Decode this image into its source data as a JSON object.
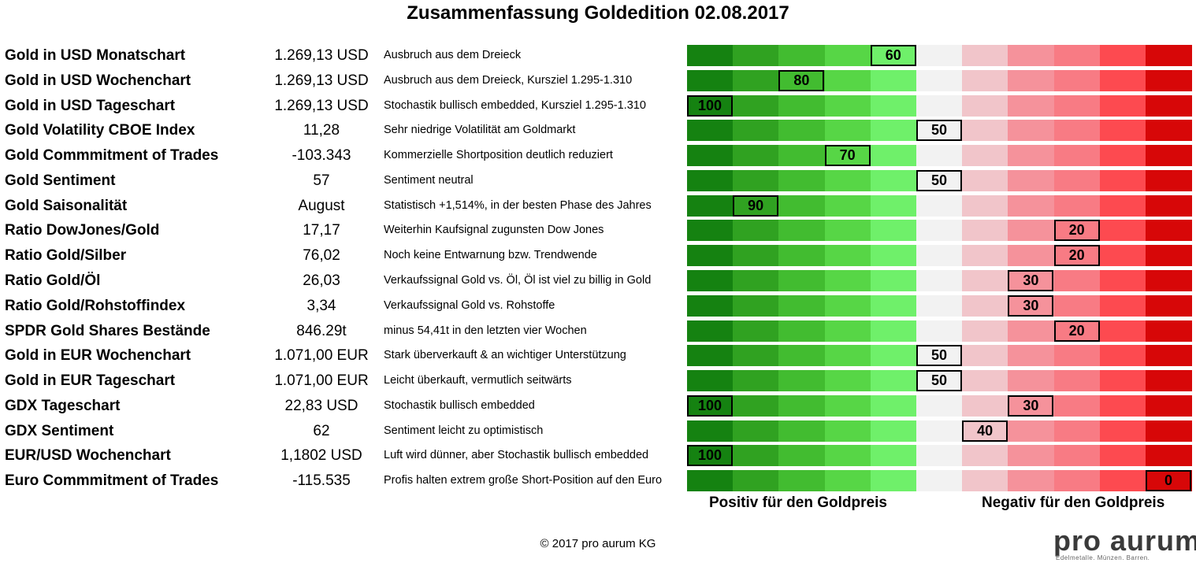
{
  "title": "Zusammenfassung Goldedition 02.08.2017",
  "chart_data": {
    "type": "table",
    "scale_colors": [
      "#158211",
      "#30a221",
      "#42bc30",
      "#57d646",
      "#6ff06a",
      "#f2f2f2",
      "#f1c5ca",
      "#f5929b",
      "#f87b84",
      "#fd4a50",
      "#d70708"
    ],
    "scale_ticks": [
      100,
      90,
      80,
      70,
      60,
      50,
      40,
      30,
      20,
      10,
      0
    ],
    "rows": [
      {
        "label": "Gold in USD Monatschart",
        "value": "1.269,13 USD",
        "comment": "Ausbruch aus dem Dreieck",
        "score": 60
      },
      {
        "label": "Gold in USD Wochenchart",
        "value": "1.269,13 USD",
        "comment": "Ausbruch aus dem Dreieck, Kursziel 1.295-1.310",
        "score": 80
      },
      {
        "label": "Gold in USD Tageschart",
        "value": "1.269,13 USD",
        "comment": "Stochastik bullisch embedded, Kursziel 1.295-1.310",
        "score": 100
      },
      {
        "label": "Gold Volatility CBOE Index",
        "value": "11,28",
        "comment": "Sehr niedrige Volatilität am Goldmarkt",
        "score": 50
      },
      {
        "label": "Gold Commmitment of Trades",
        "value": "-103.343",
        "comment": "Kommerzielle Shortposition deutlich reduziert",
        "score": 70
      },
      {
        "label": "Gold Sentiment",
        "value": "57",
        "comment": "Sentiment neutral",
        "score": 50
      },
      {
        "label": "Gold Saisonalität",
        "value": "August",
        "comment": "Statistisch +1,514%, in der besten Phase des Jahres",
        "score": 90
      },
      {
        "label": "Ratio DowJones/Gold",
        "value": "17,17",
        "comment": "Weiterhin Kaufsignal zugunsten Dow Jones",
        "score": 20
      },
      {
        "label": "Ratio Gold/Silber",
        "value": "76,02",
        "comment": "Noch keine Entwarnung bzw. Trendwende",
        "score": 20
      },
      {
        "label": "Ratio Gold/Öl",
        "value": "26,03",
        "comment": "Verkaufssignal Gold vs. Öl, Öl ist viel zu billig in Gold",
        "score": 30
      },
      {
        "label": "Ratio Gold/Rohstoffindex",
        "value": "3,34",
        "comment": "Verkaufssignal Gold vs. Rohstoffe",
        "score": 30
      },
      {
        "label": "SPDR Gold Shares Bestände",
        "value": "846.29t",
        "comment": "minus 54,41t in den letzten vier Wochen",
        "score": 20
      },
      {
        "label": "Gold in EUR Wochenchart",
        "value": "1.071,00 EUR",
        "comment": "Stark überverkauft & an wichtiger Unterstützung",
        "score": 50
      },
      {
        "label": "Gold in EUR Tageschart",
        "value": "1.071,00 EUR",
        "comment": "Leicht überkauft, vermutlich seitwärts",
        "score": 50
      },
      {
        "label": "GDX Tageschart",
        "value": "22,83 USD",
        "comment": "Stochastik bullisch embedded",
        "score": [
          100,
          30
        ]
      },
      {
        "label": "GDX Sentiment",
        "value": "62",
        "comment": "Sentiment leicht zu optimistisch",
        "score": 40
      },
      {
        "label": "EUR/USD Wochenchart",
        "value": "1,1802 USD",
        "comment": "Luft wird dünner, aber Stochastik bullisch embedded",
        "score": 100
      },
      {
        "label": "Euro Commmitment of Trades",
        "value": "-115.535",
        "comment": "Profis halten extrem große Short-Position auf den Euro",
        "score": 0
      }
    ],
    "positive_label": "Positiv für den Goldpreis",
    "negative_label": "Negativ für den Goldpreis"
  },
  "copyright": "© 2017 pro aurum KG",
  "logo": {
    "name": "pro aurum",
    "tagline": "Edelmetalle. Münzen. Barren."
  }
}
